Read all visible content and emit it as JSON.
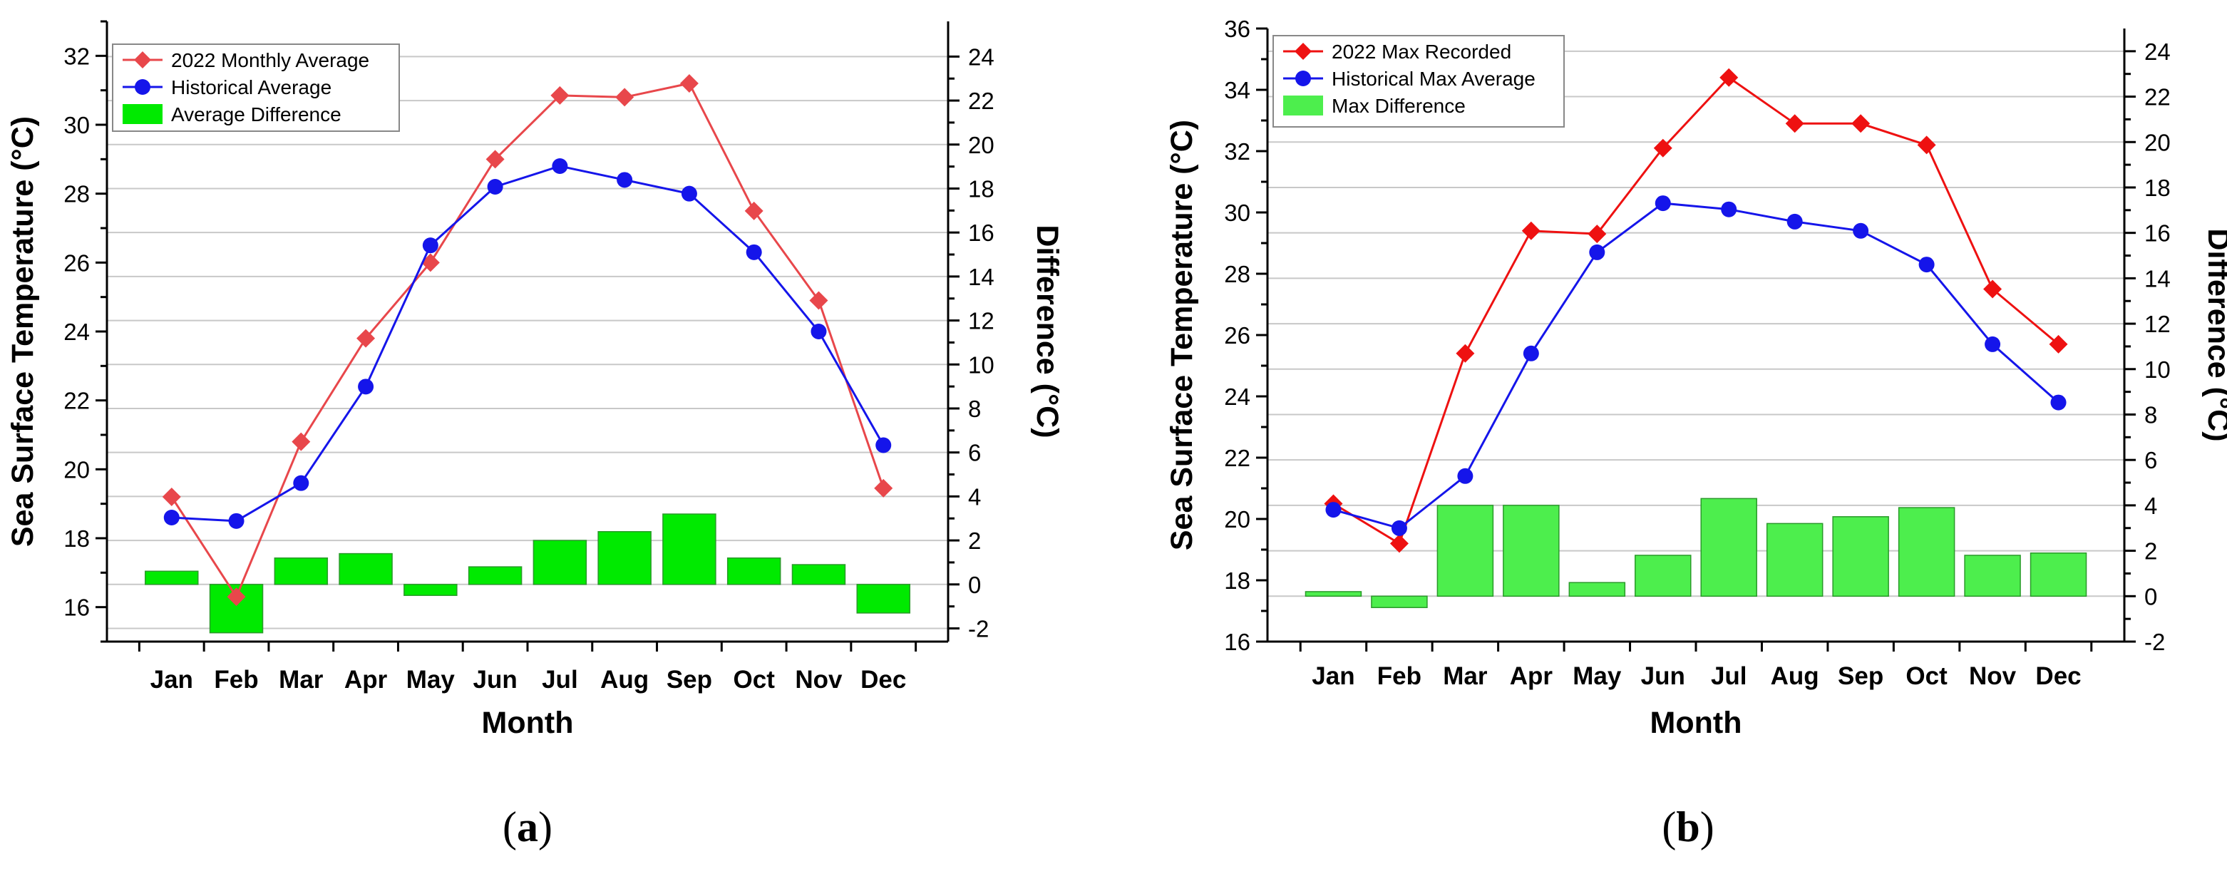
{
  "chart_data": [
    {
      "type": "line+bar",
      "panel_label": "(a)",
      "xlabel": "Month",
      "ylabel": "Sea Surface Temperature (°C)",
      "y2label": "Difference (°C)",
      "categories": [
        "Jan",
        "Feb",
        "Mar",
        "Apr",
        "May",
        "Jun",
        "Jul",
        "Aug",
        "Sep",
        "Oct",
        "Nov",
        "Dec"
      ],
      "ylim": [
        15,
        33
      ],
      "yticks": [
        16,
        18,
        20,
        22,
        24,
        26,
        28,
        30,
        32
      ],
      "y2lim": [
        -2.6,
        25.6
      ],
      "y2ticks": [
        -2,
        0,
        2,
        4,
        6,
        8,
        10,
        12,
        14,
        16,
        18,
        20,
        22,
        24
      ],
      "grid": true,
      "legend_position": "top-left",
      "series": [
        {
          "name": "2022 Monthly Average",
          "kind": "line",
          "marker": "diamond",
          "color": "#e8474b",
          "values": [
            19.2,
            16.3,
            20.8,
            23.8,
            26.0,
            29.0,
            30.85,
            30.8,
            31.2,
            27.5,
            24.9,
            19.45
          ]
        },
        {
          "name": "Historical Average",
          "kind": "line",
          "marker": "circle",
          "color": "#1515ea",
          "values": [
            18.6,
            18.5,
            19.6,
            22.4,
            26.5,
            28.2,
            28.8,
            28.4,
            28.0,
            26.3,
            24.0,
            20.7
          ]
        },
        {
          "name": "Average Difference",
          "kind": "bar",
          "axis": "right",
          "color": "#00ea00",
          "values": [
            0.6,
            -2.2,
            1.2,
            1.4,
            -0.5,
            0.8,
            2.0,
            2.4,
            3.2,
            1.2,
            0.9,
            -1.3
          ]
        }
      ]
    },
    {
      "type": "line+bar",
      "panel_label": "(b)",
      "xlabel": "Month",
      "ylabel": "Sea Surface Temperature (°C)",
      "y2label": "Difference (°C)",
      "categories": [
        "Jan",
        "Feb",
        "Mar",
        "Apr",
        "May",
        "Jun",
        "Jul",
        "Aug",
        "Sep",
        "Oct",
        "Nov",
        "Dec"
      ],
      "ylim": [
        16,
        36
      ],
      "yticks": [
        16,
        18,
        20,
        22,
        24,
        26,
        28,
        30,
        32,
        34,
        36
      ],
      "y2lim": [
        -2,
        25
      ],
      "y2ticks": [
        -2,
        0,
        2,
        4,
        6,
        8,
        10,
        12,
        14,
        16,
        18,
        20,
        22,
        24
      ],
      "grid": true,
      "legend_position": "top-left",
      "series": [
        {
          "name": "2022 Max Recorded",
          "kind": "line",
          "marker": "diamond",
          "color": "#ee1111",
          "values": [
            20.5,
            19.2,
            25.4,
            29.4,
            29.3,
            32.1,
            34.4,
            32.9,
            32.9,
            32.2,
            27.5,
            25.7
          ]
        },
        {
          "name": "Historical Max Average",
          "kind": "line",
          "marker": "circle",
          "color": "#1515ea",
          "values": [
            20.3,
            19.7,
            21.4,
            25.4,
            28.7,
            30.3,
            30.1,
            29.7,
            29.4,
            28.3,
            25.7,
            23.8
          ]
        },
        {
          "name": "Max Difference",
          "kind": "bar",
          "axis": "right",
          "color": "#4dee4d",
          "values": [
            0.2,
            -0.5,
            4.0,
            4.0,
            0.6,
            1.8,
            4.3,
            3.2,
            3.5,
            3.9,
            1.8,
            1.9
          ]
        }
      ]
    }
  ]
}
